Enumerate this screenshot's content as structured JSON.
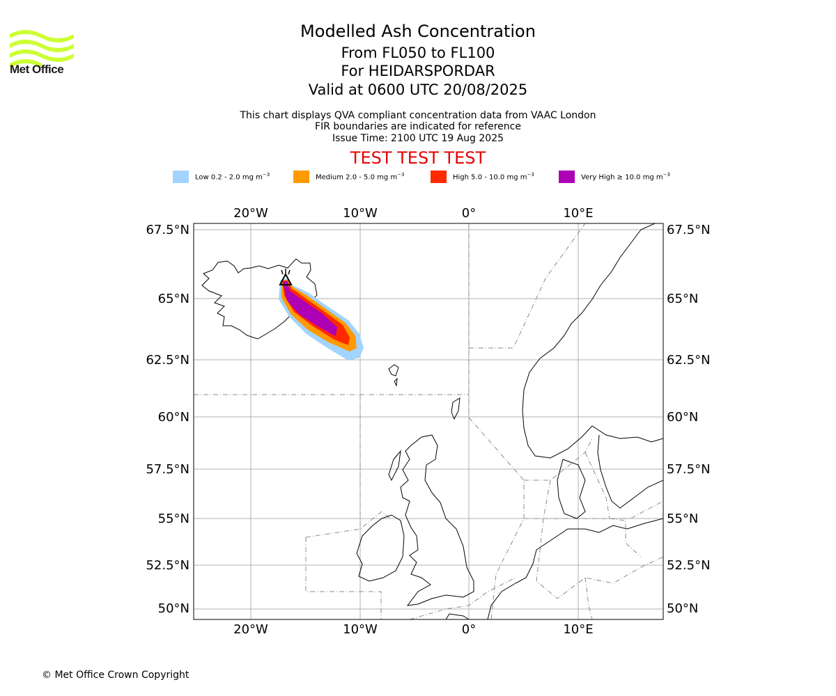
{
  "logo": {
    "name": "Met Office"
  },
  "header": {
    "title": "Modelled Ash Concentration",
    "levels": "From FL050 to FL100",
    "volcano": "For HEIDARSPORDAR",
    "valid": "Valid at 0600 UTC 20/08/2025",
    "note1": "This chart displays QVA compliant concentration data from VAAC London",
    "note2": "FIR boundaries are indicated for reference",
    "issue": "Issue Time: 2100 UTC 19 Aug 2025",
    "test_banner": "TEST TEST TEST"
  },
  "legend": [
    {
      "label": "Low 0.2 - 2.0 mg m",
      "unit_exp": "−3",
      "color": "#a3d3ff"
    },
    {
      "label": "Medium 2.0 - 5.0 mg m",
      "unit_exp": "−3",
      "color": "#ff9a00"
    },
    {
      "label": "High 5.0 - 10.0 mg m",
      "unit_exp": "−3",
      "color": "#ff2a00"
    },
    {
      "label": "Very High ≥ 10.0 mg m",
      "unit_exp": "−3",
      "color": "#ae00b4"
    }
  ],
  "map": {
    "lon_labels": [
      "20°W",
      "10°W",
      "0°",
      "10°E"
    ],
    "lat_labels": [
      "67.5°N",
      "65°N",
      "62.5°N",
      "60°N",
      "57.5°N",
      "55°N",
      "52.5°N",
      "50°N"
    ],
    "volcano_marker": "volcano-icon"
  },
  "footer": {
    "copyright": "© Met Office Crown Copyright"
  }
}
